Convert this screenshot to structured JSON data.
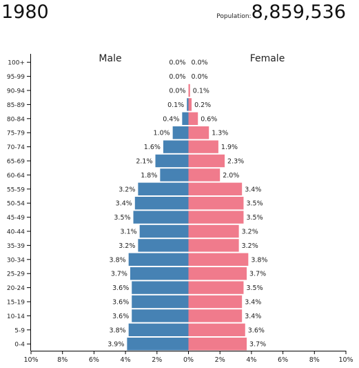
{
  "header": {
    "year": "1980",
    "population_label": "Population:",
    "population_value": "8,859,536"
  },
  "colors": {
    "male": "#4682b4",
    "female": "#f07b8c",
    "axis": "#000000"
  },
  "chart_data": {
    "type": "bar",
    "orientation": "horizontal",
    "layout": "population-pyramid",
    "categories": [
      "100+",
      "95-99",
      "90-94",
      "85-89",
      "80-84",
      "75-79",
      "70-74",
      "65-69",
      "60-64",
      "55-59",
      "50-54",
      "45-49",
      "40-44",
      "35-39",
      "30-34",
      "25-29",
      "20-24",
      "15-19",
      "10-14",
      "5-9",
      "0-4"
    ],
    "series": [
      {
        "name": "Male",
        "values": [
          0.0,
          0.0,
          0.0,
          0.1,
          0.4,
          1.0,
          1.6,
          2.1,
          1.8,
          3.2,
          3.4,
          3.5,
          3.1,
          3.2,
          3.8,
          3.7,
          3.6,
          3.6,
          3.6,
          3.8,
          3.9
        ],
        "labels": [
          "0.0%",
          "0.0%",
          "0.0%",
          "0.1%",
          "0.4%",
          "1.0%",
          "1.6%",
          "2.1%",
          "1.8%",
          "3.2%",
          "3.4%",
          "3.5%",
          "3.1%",
          "3.2%",
          "3.8%",
          "3.7%",
          "3.6%",
          "3.6%",
          "3.6%",
          "3.8%",
          "3.9%"
        ]
      },
      {
        "name": "Female",
        "values": [
          0.0,
          0.0,
          0.1,
          0.2,
          0.6,
          1.3,
          1.9,
          2.3,
          2.0,
          3.4,
          3.5,
          3.5,
          3.2,
          3.2,
          3.8,
          3.7,
          3.5,
          3.4,
          3.4,
          3.6,
          3.7
        ],
        "labels": [
          "0.0%",
          "0.0%",
          "0.1%",
          "0.2%",
          "0.6%",
          "1.3%",
          "1.9%",
          "2.3%",
          "2.0%",
          "3.4%",
          "3.5%",
          "3.5%",
          "3.2%",
          "3.2%",
          "3.8%",
          "3.7%",
          "3.5%",
          "3.4%",
          "3.4%",
          "3.6%",
          "3.7%"
        ]
      }
    ],
    "xlim": [
      -10,
      10
    ],
    "xticks": [
      -10,
      -8,
      -6,
      -4,
      -2,
      0,
      2,
      4,
      6,
      8,
      10
    ],
    "xtick_labels": [
      "10%",
      "8%",
      "6%",
      "4%",
      "2%",
      "0%",
      "2%",
      "4%",
      "6%",
      "8%",
      "10%"
    ],
    "grid": false
  }
}
